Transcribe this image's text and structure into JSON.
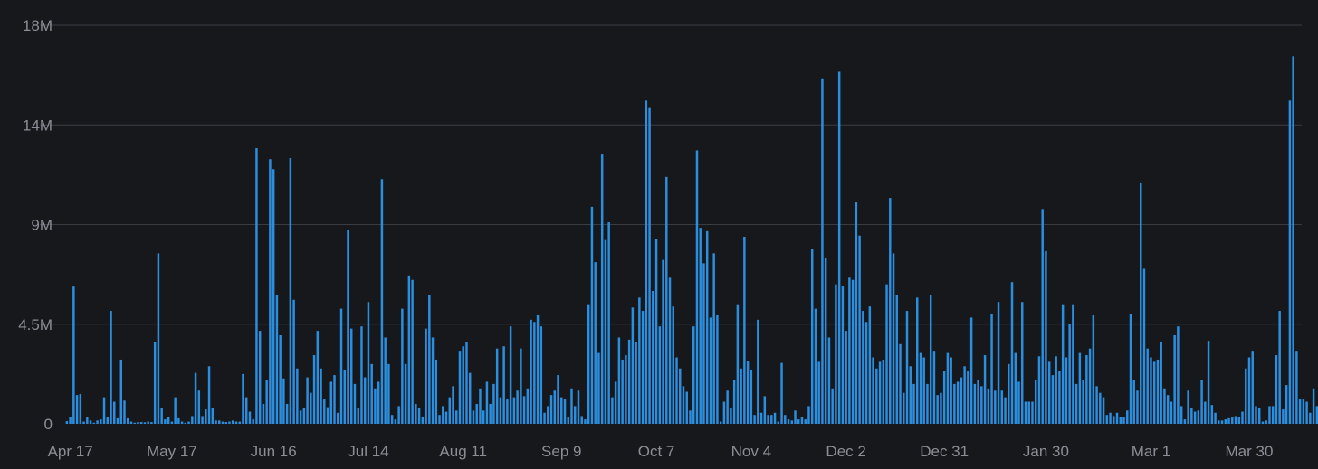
{
  "chart_data": {
    "type": "bar",
    "title": "",
    "xlabel": "",
    "ylabel": "",
    "ylim": [
      0,
      18000000
    ],
    "grid": true,
    "y_ticks": [
      {
        "value": 0,
        "label": "0"
      },
      {
        "value": 4500000,
        "label": "4.5M"
      },
      {
        "value": 9000000,
        "label": "9M"
      },
      {
        "value": 13500000,
        "label": "14M"
      },
      {
        "value": 18000000,
        "label": "18M"
      }
    ],
    "x_ticks": [
      {
        "date": "2023-04-17",
        "label": "Apr 17"
      },
      {
        "date": "2023-05-17",
        "label": "May 17"
      },
      {
        "date": "2023-06-16",
        "label": "Jun 16"
      },
      {
        "date": "2023-07-14",
        "label": "Jul 14"
      },
      {
        "date": "2023-08-11",
        "label": "Aug 11"
      },
      {
        "date": "2023-09-09",
        "label": "Sep 9"
      },
      {
        "date": "2023-10-07",
        "label": "Oct 7"
      },
      {
        "date": "2023-11-04",
        "label": "Nov 4"
      },
      {
        "date": "2023-12-02",
        "label": "Dec 2"
      },
      {
        "date": "2023-12-31",
        "label": "Dec 31"
      },
      {
        "date": "2024-01-30",
        "label": "Jan 30"
      },
      {
        "date": "2024-03-01",
        "label": "Mar 1"
      },
      {
        "date": "2024-03-30",
        "label": "Mar 30"
      }
    ],
    "start_date": "2023-04-16",
    "end_date": "2024-04-14",
    "colors": {
      "bar": "#2b8fe0",
      "background": "#17181c",
      "grid": "#3a3c42",
      "text": "#8b8e96"
    },
    "values": [
      0.12,
      0.3,
      6.2,
      1.3,
      1.35,
      0.1,
      0.3,
      0.15,
      0.05,
      0.15,
      0.2,
      1.2,
      0.3,
      5.1,
      1.0,
      0.25,
      2.9,
      1.05,
      0.25,
      0.1,
      0.05,
      0.08,
      0.08,
      0.07,
      0.1,
      0.08,
      3.7,
      7.7,
      0.7,
      0.2,
      0.3,
      0.1,
      1.2,
      0.25,
      0.1,
      0.05,
      0.1,
      0.35,
      2.3,
      1.5,
      0.35,
      0.65,
      2.6,
      0.7,
      0.15,
      0.15,
      0.1,
      0.08,
      0.1,
      0.15,
      0.1,
      0.1,
      2.25,
      1.2,
      0.55,
      0.2,
      12.45,
      4.2,
      0.9,
      2.0,
      11.95,
      11.5,
      5.8,
      4.0,
      2.05,
      0.9,
      12.0,
      5.6,
      2.5,
      0.6,
      0.7,
      2.1,
      1.4,
      3.1,
      4.2,
      2.5,
      1.1,
      0.75,
      1.9,
      2.2,
      0.5,
      5.2,
      2.45,
      8.75,
      4.3,
      1.8,
      0.7,
      4.4,
      2.1,
      5.5,
      2.7,
      1.6,
      1.9,
      11.05,
      3.9,
      2.7,
      0.4,
      0.2,
      0.8,
      5.2,
      2.7,
      6.7,
      6.5,
      0.9,
      0.7,
      0.3,
      4.3,
      5.8,
      3.9,
      2.9,
      0.4,
      0.8,
      0.55,
      1.2,
      1.7,
      0.6,
      3.3,
      3.5,
      3.7,
      2.3,
      0.6,
      0.9,
      1.6,
      0.6,
      1.9,
      0.9,
      1.8,
      3.4,
      1.2,
      3.5,
      1.1,
      4.4,
      1.2,
      1.5,
      3.4,
      1.25,
      1.6,
      4.7,
      4.6,
      4.9,
      4.4,
      0.5,
      0.8,
      1.3,
      1.5,
      2.2,
      1.2,
      1.1,
      0.3,
      1.6,
      0.8,
      1.5,
      0.35,
      0.2,
      5.4,
      9.8,
      7.3,
      3.2,
      12.2,
      8.3,
      9.1,
      1.2,
      1.9,
      3.9,
      2.9,
      3.1,
      3.8,
      5.25,
      3.7,
      5.7,
      5.1,
      14.6,
      14.3,
      6.0,
      8.35,
      4.4,
      7.4,
      11.15,
      6.6,
      5.3,
      3.0,
      2.5,
      1.7,
      1.45,
      0.6,
      4.4,
      12.35,
      8.85,
      7.25,
      8.7,
      4.8,
      7.7,
      4.9,
      0.1,
      1.0,
      1.5,
      0.7,
      2.0,
      5.4,
      2.5,
      8.45,
      2.85,
      2.45,
      0.4,
      4.7,
      0.5,
      1.25,
      0.4,
      0.4,
      0.5,
      0.1,
      2.75,
      0.4,
      0.2,
      0.15,
      0.6,
      0.2,
      0.3,
      0.2,
      0.8,
      7.9,
      5.2,
      2.8,
      15.6,
      7.5,
      3.9,
      1.6,
      6.3,
      15.9,
      6.2,
      4.2,
      6.6,
      6.5,
      10.0,
      8.5,
      5.1,
      4.6,
      5.3,
      3.0,
      2.5,
      2.8,
      2.9,
      6.3,
      10.2,
      7.7,
      5.8,
      3.6,
      1.4,
      5.1,
      2.6,
      1.8,
      5.7,
      3.2,
      3.0,
      1.8,
      5.8,
      3.3,
      1.3,
      1.4,
      2.4,
      3.2,
      3.0,
      1.8,
      1.9,
      2.1,
      2.6,
      2.4,
      4.8,
      1.8,
      2.0,
      1.7,
      3.1,
      1.6,
      4.95,
      1.5,
      5.5,
      1.5,
      1.2,
      2.7,
      6.4,
      3.2,
      1.9,
      5.5,
      1.0,
      1.0,
      1.0,
      2.0,
      3.05,
      9.7,
      7.8,
      2.8,
      2.2,
      3.05,
      2.4,
      5.4,
      3.0,
      4.5,
      5.4,
      1.8,
      3.2,
      2.0,
      3.1,
      3.4,
      4.9,
      1.7,
      1.4,
      1.2,
      0.4,
      0.5,
      0.35,
      0.5,
      0.3,
      0.3,
      0.6,
      4.95,
      2.0,
      1.5,
      10.9,
      7.0,
      3.4,
      3.0,
      2.8,
      2.9,
      3.7,
      1.6,
      1.3,
      1.0,
      4.0,
      4.4,
      0.8,
      0.2,
      1.5,
      0.7,
      0.55,
      0.6,
      2.0,
      1.0,
      3.75,
      0.85,
      0.5,
      0.15,
      0.15,
      0.2,
      0.25,
      0.3,
      0.35,
      0.3,
      0.55,
      2.5,
      3.0,
      3.3,
      0.8,
      0.7,
      0.1,
      0.15,
      0.8,
      0.8,
      3.1,
      5.1,
      0.65,
      1.75,
      14.6,
      16.6,
      3.3,
      1.1,
      1.1,
      1.0,
      0.5,
      1.6,
      0.8,
      1.1,
      0.4,
      0.6,
      0.15,
      0.15,
      0.1,
      0.15,
      0.35,
      0.8,
      2.45,
      1.4,
      0.7,
      0.95,
      2.7,
      0.9,
      0.45,
      0.4,
      0.5,
      1.4,
      3.1,
      3.3,
      3.5,
      8.3,
      4.8,
      6.2
    ]
  }
}
